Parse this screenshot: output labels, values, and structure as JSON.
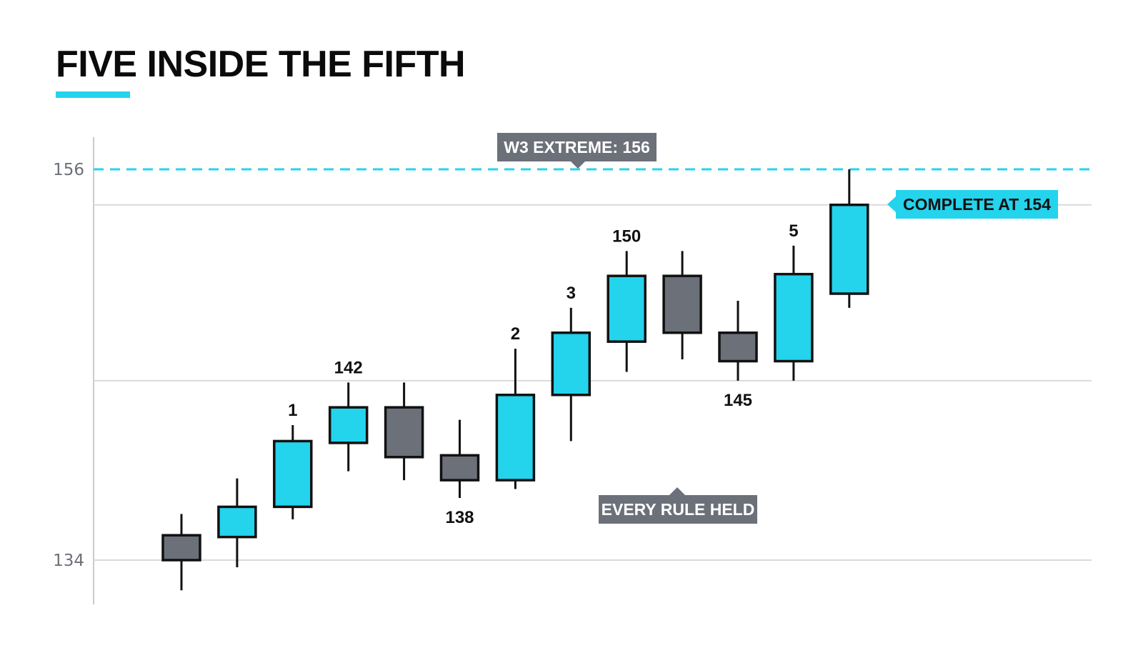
{
  "page": {
    "title": "FIVE INSIDE THE FIFTH"
  },
  "colors": {
    "bull": "#24d3ec",
    "bear": "#6b7079",
    "outline": "#111111",
    "grid": "#d9dadc",
    "axis": "#c9cacd",
    "callout_gray": "#6b7079",
    "callout_text_light": "#ffffff",
    "callout_text_dark": "#111111",
    "accent_line": "#24d3ec"
  },
  "chart_data": {
    "type": "candlestick",
    "y_ticks": [
      {
        "label": "156",
        "value": 156
      },
      {
        "label": "134",
        "value": 134
      }
    ],
    "gridlines": [
      154,
      144.1,
      134
    ],
    "reference_line": {
      "value": 156,
      "style": "dashed",
      "color": "#24d3ec"
    },
    "candles": [
      {
        "open": 135.4,
        "close": 134.0,
        "high": 136.6,
        "low": 132.3
      },
      {
        "open": 135.3,
        "close": 137.0,
        "high": 138.6,
        "low": 133.6
      },
      {
        "open": 137.0,
        "close": 140.7,
        "high": 141.6,
        "low": 136.3
      },
      {
        "open": 140.6,
        "close": 142.6,
        "high": 144.0,
        "low": 139.0
      },
      {
        "open": 142.6,
        "close": 139.8,
        "high": 144.0,
        "low": 138.5
      },
      {
        "open": 139.9,
        "close": 138.5,
        "high": 141.9,
        "low": 137.5
      },
      {
        "open": 138.5,
        "close": 143.3,
        "high": 145.9,
        "low": 138.0
      },
      {
        "open": 143.3,
        "close": 146.8,
        "high": 148.2,
        "low": 140.7
      },
      {
        "open": 146.3,
        "close": 150.0,
        "high": 151.4,
        "low": 144.6
      },
      {
        "open": 150.0,
        "close": 146.8,
        "high": 151.4,
        "low": 145.3
      },
      {
        "open": 146.8,
        "close": 145.2,
        "high": 148.6,
        "low": 144.1
      },
      {
        "open": 145.2,
        "close": 150.1,
        "high": 151.7,
        "low": 144.1
      },
      {
        "open": 149.0,
        "close": 154.0,
        "high": 156.0,
        "low": 148.2
      }
    ],
    "candle_labels": [
      {
        "candle": 2,
        "text": "1",
        "position": "above"
      },
      {
        "candle": 3,
        "text": "142",
        "position": "above"
      },
      {
        "candle": 5,
        "text": "138",
        "position": "below"
      },
      {
        "candle": 6,
        "text": "2",
        "position": "above"
      },
      {
        "candle": 7,
        "text": "3",
        "position": "above"
      },
      {
        "candle": 8,
        "text": "150",
        "position": "above"
      },
      {
        "candle": 10,
        "text": "145",
        "position": "below"
      },
      {
        "candle": 11,
        "text": "5",
        "position": "above"
      }
    ],
    "annotations": {
      "w3_extreme": "W3 EXTREME: 156",
      "complete": "COMPLETE AT 154",
      "every_rule": "EVERY RULE HELD"
    }
  }
}
